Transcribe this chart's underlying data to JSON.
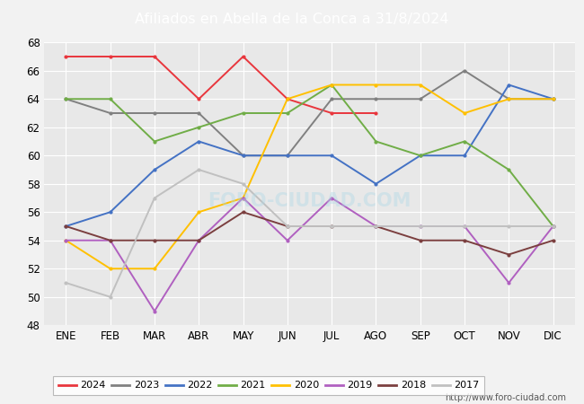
{
  "title": "Afiliados en Abella de la Conca a 31/8/2024",
  "header_bg": "#5b9bd5",
  "months": [
    "ENE",
    "FEB",
    "MAR",
    "ABR",
    "MAY",
    "JUN",
    "JUL",
    "AGO",
    "SEP",
    "OCT",
    "NOV",
    "DIC"
  ],
  "ylim": [
    48,
    68
  ],
  "yticks": [
    48,
    50,
    52,
    54,
    56,
    58,
    60,
    62,
    64,
    66,
    68
  ],
  "series": {
    "2024": {
      "color": "#e8363d",
      "data": [
        67,
        67,
        67,
        64,
        67,
        64,
        63,
        63,
        null,
        null,
        null,
        null
      ]
    },
    "2023": {
      "color": "#808080",
      "data": [
        64,
        63,
        63,
        63,
        60,
        60,
        64,
        64,
        64,
        66,
        64,
        64
      ]
    },
    "2022": {
      "color": "#4472c4",
      "data": [
        55,
        56,
        59,
        61,
        60,
        60,
        60,
        58,
        60,
        60,
        65,
        64
      ]
    },
    "2021": {
      "color": "#70ad47",
      "data": [
        64,
        64,
        61,
        62,
        63,
        63,
        65,
        61,
        60,
        61,
        59,
        55
      ]
    },
    "2020": {
      "color": "#ffc000",
      "data": [
        54,
        52,
        52,
        56,
        57,
        64,
        65,
        65,
        65,
        63,
        64,
        64
      ]
    },
    "2019": {
      "color": "#b060c0",
      "data": [
        54,
        54,
        49,
        54,
        57,
        54,
        57,
        55,
        55,
        55,
        51,
        55
      ]
    },
    "2018": {
      "color": "#7b3f3f",
      "data": [
        55,
        54,
        54,
        54,
        56,
        55,
        55,
        55,
        54,
        54,
        53,
        54
      ]
    },
    "2017": {
      "color": "#c0c0c0",
      "data": [
        51,
        50,
        57,
        59,
        58,
        55,
        55,
        55,
        55,
        55,
        55,
        55
      ]
    }
  },
  "legend_order": [
    "2024",
    "2023",
    "2022",
    "2021",
    "2020",
    "2019",
    "2018",
    "2017"
  ],
  "url": "http://www.foro-ciudad.com",
  "bg_color": "#f2f2f2",
  "plot_bg": "#e8e8e8",
  "grid_color": "#ffffff"
}
